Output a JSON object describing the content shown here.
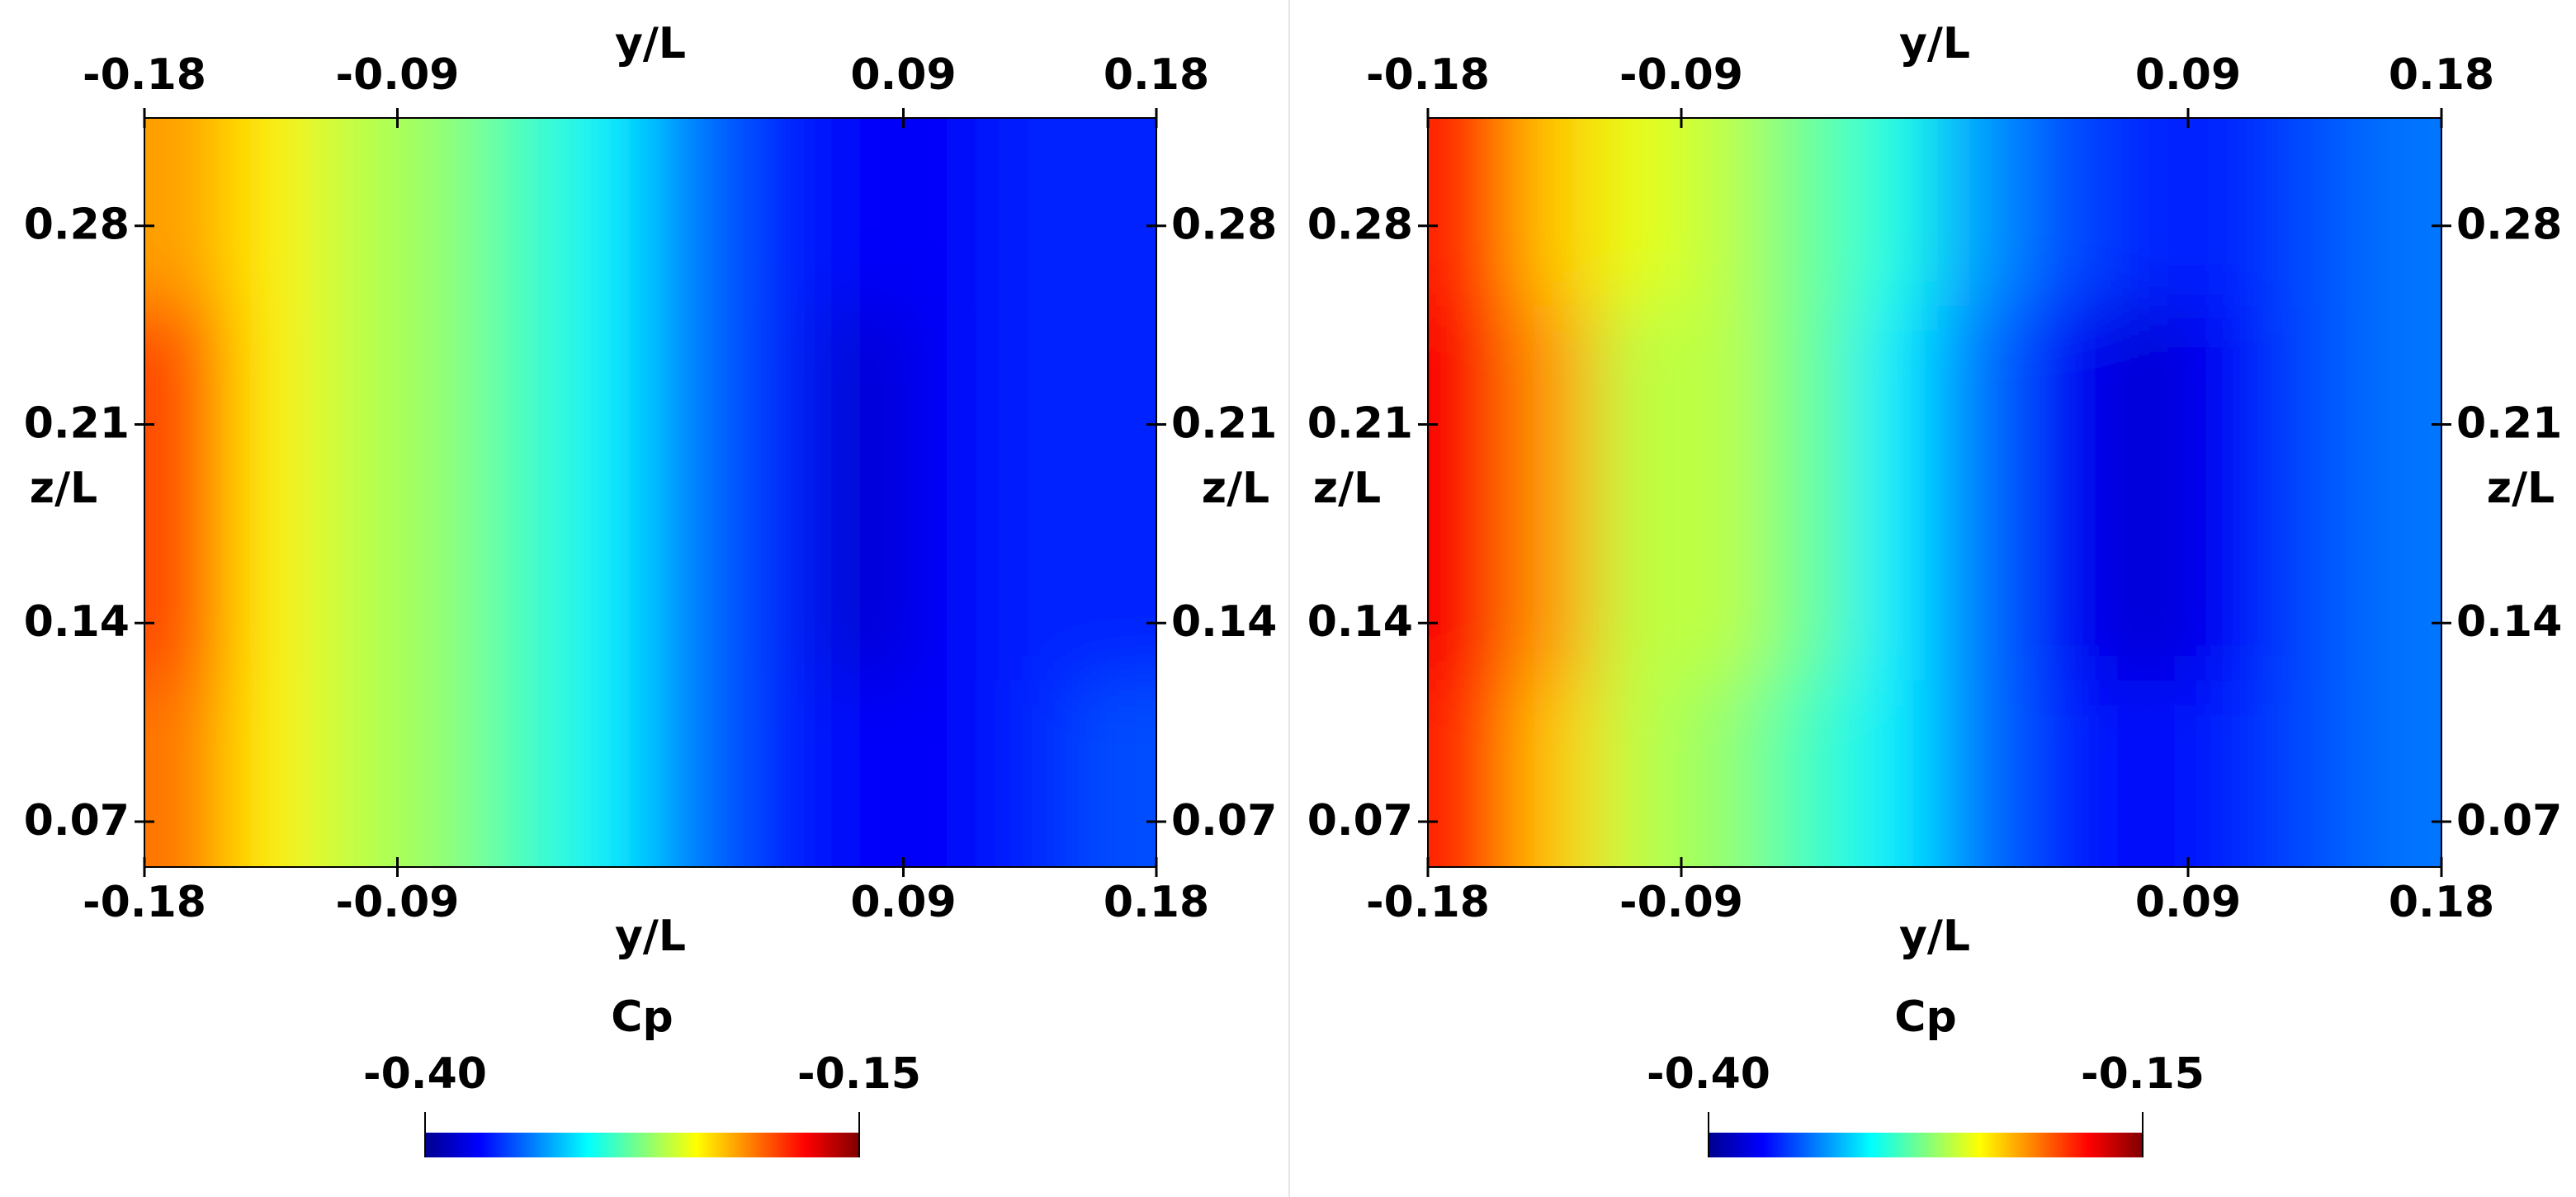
{
  "chart_data": [
    {
      "type": "heatmap",
      "x_label": "y/L",
      "y_label": "z/L",
      "xlim": [
        -0.18,
        0.18
      ],
      "ylim": [
        0.054,
        0.318
      ],
      "xticks": [
        -0.18,
        -0.09,
        0.09,
        0.18
      ],
      "yticks": [
        0.07,
        0.14,
        0.21,
        0.28
      ],
      "x": [
        -0.165,
        -0.135,
        -0.105,
        -0.075,
        -0.045,
        -0.015,
        0.015,
        0.045,
        0.075,
        0.105,
        0.135,
        0.165
      ],
      "y": [
        0.087,
        0.153,
        0.219,
        0.285
      ],
      "values": [
        [
          -0.21,
          -0.24,
          -0.26,
          -0.27,
          -0.29,
          -0.31,
          -0.34,
          -0.36,
          -0.37,
          -0.37,
          -0.36,
          -0.35
        ],
        [
          -0.2,
          -0.24,
          -0.26,
          -0.27,
          -0.29,
          -0.31,
          -0.34,
          -0.36,
          -0.38,
          -0.37,
          -0.36,
          -0.36
        ],
        [
          -0.2,
          -0.24,
          -0.26,
          -0.27,
          -0.29,
          -0.31,
          -0.34,
          -0.36,
          -0.38,
          -0.37,
          -0.36,
          -0.36
        ],
        [
          -0.22,
          -0.24,
          -0.26,
          -0.27,
          -0.29,
          -0.31,
          -0.34,
          -0.36,
          -0.37,
          -0.37,
          -0.36,
          -0.36
        ]
      ],
      "colormap": "jet",
      "colorbar": {
        "title": "Cp",
        "lim": [
          -0.4,
          -0.15
        ],
        "ticks": [
          {
            "value": -0.4,
            "label": "-0.40"
          },
          {
            "value": -0.15,
            "label": "-0.15"
          }
        ]
      }
    },
    {
      "type": "heatmap",
      "x_label": "y/L",
      "y_label": "z/L",
      "xlim": [
        -0.18,
        0.18
      ],
      "ylim": [
        0.054,
        0.318
      ],
      "xticks": [
        -0.18,
        -0.09,
        0.09,
        0.18
      ],
      "yticks": [
        0.07,
        0.14,
        0.21,
        0.28
      ],
      "x": [
        -0.165,
        -0.135,
        -0.105,
        -0.075,
        -0.045,
        -0.015,
        0.015,
        0.045,
        0.075,
        0.105,
        0.135,
        0.165
      ],
      "y": [
        0.087,
        0.153,
        0.219,
        0.285
      ],
      "values": [
        [
          -0.19,
          -0.23,
          -0.26,
          -0.27,
          -0.29,
          -0.31,
          -0.34,
          -0.36,
          -0.37,
          -0.36,
          -0.35,
          -0.34
        ],
        [
          -0.18,
          -0.22,
          -0.26,
          -0.26,
          -0.28,
          -0.31,
          -0.34,
          -0.37,
          -0.38,
          -0.37,
          -0.35,
          -0.34
        ],
        [
          -0.18,
          -0.22,
          -0.26,
          -0.26,
          -0.28,
          -0.31,
          -0.34,
          -0.37,
          -0.38,
          -0.37,
          -0.35,
          -0.34
        ],
        [
          -0.19,
          -0.23,
          -0.25,
          -0.26,
          -0.28,
          -0.3,
          -0.33,
          -0.35,
          -0.36,
          -0.36,
          -0.35,
          -0.34
        ]
      ],
      "colormap": "jet",
      "colorbar": {
        "title": "Cp",
        "lim": [
          -0.4,
          -0.15
        ],
        "ticks": [
          {
            "value": -0.4,
            "label": "-0.40"
          },
          {
            "value": -0.15,
            "label": "-0.15"
          }
        ]
      }
    }
  ]
}
